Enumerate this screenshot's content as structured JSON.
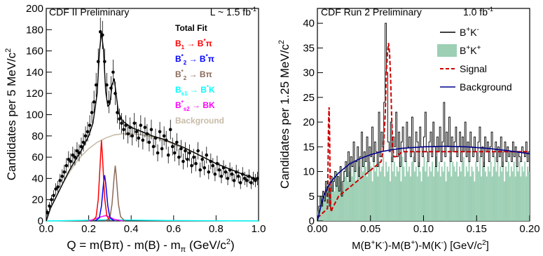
{
  "chart_data": [
    {
      "type": "line",
      "header_left": "CDF II Preliminary",
      "header_right_main": "L ~ 1.5 fb",
      "header_right_sup": "-1",
      "ylabel_main": "Candidates per 5 MeV/c",
      "ylabel_sup": "2",
      "xlabel_main": "Q = m(Bπ) - m(B) - m",
      "xlabel_sub": "π",
      "xlabel_tail": " (GeV/c",
      "xlabel_sup": "2",
      "xlabel_end": ")",
      "xlim": [
        0.0,
        1.0
      ],
      "ylim": [
        0,
        200
      ],
      "xticks": [
        0.0,
        0.2,
        0.4,
        0.6,
        0.8,
        1.0
      ],
      "xtick_labels": [
        "0.0",
        "0.2",
        "0.4",
        "0.6",
        "0.8",
        "1.0"
      ],
      "yticks": [
        0,
        20,
        40,
        60,
        80,
        100,
        120,
        140,
        160,
        180,
        200
      ],
      "ytick_labels": [
        "0",
        "20",
        "40",
        "60",
        "80",
        "100",
        "120",
        "140",
        "160",
        "180",
        "200"
      ],
      "legend_position": "top-right",
      "legend": [
        {
          "key": "total",
          "color": "#000000",
          "parts": [
            {
              "t": "Total Fit"
            }
          ]
        },
        {
          "key": "b1",
          "color": "#ff0000",
          "parts": [
            {
              "t": "B"
            },
            {
              "t": "1",
              "s": "sub"
            },
            {
              "t": " → B"
            },
            {
              "t": "*",
              "s": "sup"
            },
            {
              "t": "π"
            }
          ]
        },
        {
          "key": "b2star_bstarpi",
          "color": "#0000ff",
          "parts": [
            {
              "t": "B"
            },
            {
              "t": "*",
              "s": "sup"
            },
            {
              "t": "2",
              "s": "sub"
            },
            {
              "t": " → B"
            },
            {
              "t": "*",
              "s": "sup"
            },
            {
              "t": "π"
            }
          ]
        },
        {
          "key": "b2star_bpi",
          "color": "#8b6a5a",
          "parts": [
            {
              "t": "B"
            },
            {
              "t": "*",
              "s": "sup"
            },
            {
              "t": "2",
              "s": "sub"
            },
            {
              "t": " → Bπ"
            }
          ]
        },
        {
          "key": "bs1",
          "color": "#00ffff",
          "parts": [
            {
              "t": "B"
            },
            {
              "t": "s1",
              "s": "sub"
            },
            {
              "t": " → B"
            },
            {
              "t": "*",
              "s": "sup"
            },
            {
              "t": "K"
            }
          ]
        },
        {
          "key": "bs2",
          "color": "#ff00ff",
          "parts": [
            {
              "t": "B"
            },
            {
              "t": "*",
              "s": "sup"
            },
            {
              "t": "s2",
              "s": "sub"
            },
            {
              "t": " → BK"
            }
          ]
        },
        {
          "key": "background",
          "color": "#c8bba8",
          "parts": [
            {
              "t": "Background"
            }
          ]
        }
      ],
      "data_points": {
        "x": [
          0.005,
          0.015,
          0.025,
          0.035,
          0.045,
          0.055,
          0.065,
          0.075,
          0.085,
          0.095,
          0.105,
          0.115,
          0.125,
          0.135,
          0.145,
          0.155,
          0.165,
          0.175,
          0.185,
          0.195,
          0.205,
          0.215,
          0.225,
          0.235,
          0.245,
          0.255,
          0.265,
          0.275,
          0.285,
          0.295,
          0.305,
          0.315,
          0.325,
          0.335,
          0.345,
          0.355,
          0.365,
          0.375,
          0.385,
          0.395,
          0.405,
          0.415,
          0.425,
          0.435,
          0.445,
          0.455,
          0.465,
          0.475,
          0.485,
          0.495,
          0.505,
          0.515,
          0.525,
          0.535,
          0.545,
          0.555,
          0.565,
          0.575,
          0.585,
          0.595,
          0.605,
          0.615,
          0.625,
          0.635,
          0.645,
          0.655,
          0.665,
          0.675,
          0.685,
          0.695,
          0.705,
          0.715,
          0.725,
          0.735,
          0.745,
          0.755,
          0.765,
          0.775,
          0.785,
          0.795,
          0.805,
          0.815,
          0.825,
          0.835,
          0.845,
          0.855,
          0.865,
          0.875,
          0.885,
          0.895,
          0.905,
          0.915,
          0.925,
          0.935,
          0.945,
          0.955,
          0.965,
          0.975,
          0.985,
          0.995
        ],
        "y": [
          8,
          14,
          20,
          24,
          30,
          32,
          38,
          42,
          46,
          52,
          58,
          56,
          62,
          60,
          66,
          64,
          70,
          74,
          80,
          84,
          90,
          102,
          112,
          128,
          150,
          178,
          175,
          150,
          128,
          112,
          125,
          140,
          120,
          102,
          96,
          92,
          86,
          90,
          82,
          88,
          80,
          92,
          84,
          78,
          90,
          76,
          88,
          82,
          74,
          86,
          70,
          78,
          64,
          84,
          68,
          80,
          76,
          62,
          86,
          70,
          64,
          74,
          60,
          68,
          56,
          66,
          58,
          64,
          52,
          60,
          54,
          66,
          48,
          58,
          50,
          62,
          46,
          56,
          52,
          44,
          54,
          48,
          42,
          50,
          46,
          40,
          48,
          44,
          38,
          46,
          42,
          36,
          44,
          40,
          38,
          42,
          36,
          40,
          38,
          40
        ]
      },
      "curves": {
        "total": {
          "x": [
            0.0,
            0.02,
            0.05,
            0.08,
            0.11,
            0.14,
            0.17,
            0.2,
            0.22,
            0.24,
            0.25,
            0.26,
            0.27,
            0.28,
            0.29,
            0.3,
            0.31,
            0.32,
            0.33,
            0.34,
            0.36,
            0.4,
            0.45,
            0.5,
            0.55,
            0.6,
            0.65,
            0.7,
            0.75,
            0.8,
            0.85,
            0.9,
            0.95,
            1.0
          ],
          "y": [
            0,
            12,
            24,
            36,
            48,
            58,
            68,
            80,
            92,
            120,
            158,
            178,
            160,
            122,
            108,
            110,
            128,
            134,
            118,
            102,
            94,
            88,
            84,
            80,
            77,
            73,
            69,
            64,
            59,
            54,
            50,
            46,
            42,
            39
          ]
        },
        "background": {
          "x": [
            0.0,
            0.02,
            0.05,
            0.08,
            0.11,
            0.14,
            0.17,
            0.2,
            0.24,
            0.28,
            0.32,
            0.36,
            0.4,
            0.45,
            0.5,
            0.55,
            0.6,
            0.65,
            0.7,
            0.75,
            0.8,
            0.85,
            0.9,
            0.95,
            1.0
          ],
          "y": [
            0,
            12,
            24,
            36,
            46,
            55,
            62,
            68,
            74,
            78,
            81,
            82,
            82,
            81,
            79,
            76,
            72,
            68,
            64,
            59,
            54,
            50,
            46,
            42,
            39
          ]
        },
        "b1": {
          "x": [
            0.22,
            0.235,
            0.245,
            0.255,
            0.26,
            0.265,
            0.275,
            0.285,
            0.3
          ],
          "y": [
            0,
            4,
            20,
            58,
            76,
            60,
            22,
            5,
            0
          ]
        },
        "b2star_bstarpi": {
          "x": [
            0.23,
            0.25,
            0.26,
            0.27,
            0.275,
            0.28,
            0.29,
            0.3,
            0.32
          ],
          "y": [
            0,
            3,
            14,
            36,
            43,
            36,
            14,
            3,
            0
          ]
        },
        "b2star_bpi": {
          "x": [
            0.28,
            0.3,
            0.31,
            0.32,
            0.325,
            0.33,
            0.34,
            0.35,
            0.37
          ],
          "y": [
            0,
            3,
            16,
            42,
            52,
            42,
            16,
            4,
            0
          ]
        },
        "bs1": {
          "x": [
            0.0,
            0.2,
            0.3,
            0.4,
            0.6,
            0.8,
            1.0
          ],
          "y": [
            0,
            0.6,
            1.2,
            0.8,
            0.4,
            0.2,
            0
          ]
        },
        "bs2": {
          "x": [
            0.2,
            0.23,
            0.26,
            0.28,
            0.3,
            0.32,
            0.36
          ],
          "y": [
            0,
            2,
            4,
            5,
            3.5,
            1.5,
            0
          ]
        }
      }
    },
    {
      "type": "line",
      "header_left": "CDF Run 2 Preliminary",
      "header_right_main": "1.0 fb",
      "header_right_sup": "-1",
      "ylabel_main": "Candidates per 1.25 MeV/c",
      "ylabel_sup": "2",
      "xlabel_parts": [
        {
          "t": "M(B"
        },
        {
          "t": "+",
          "s": "sup"
        },
        {
          "t": "K"
        },
        {
          "t": "-",
          "s": "sup"
        },
        {
          "t": ")-M(B"
        },
        {
          "t": "+",
          "s": "sup"
        },
        {
          "t": ")-M(K"
        },
        {
          "t": "-",
          "s": "sup"
        },
        {
          "t": ") [GeV/c"
        },
        {
          "t": "2",
          "s": "sup"
        },
        {
          "t": "]"
        }
      ],
      "xlim": [
        0.0,
        0.2
      ],
      "ylim": [
        0,
        43
      ],
      "xticks": [
        0.0,
        0.05,
        0.1,
        0.15,
        0.2
      ],
      "xtick_labels": [
        "0.00",
        "0.05",
        "0.10",
        "0.15",
        "0.20"
      ],
      "yticks": [
        0,
        5,
        10,
        15,
        20,
        25,
        30,
        35,
        40
      ],
      "ytick_labels": [
        "0",
        "5",
        "10",
        "15",
        "20",
        "25",
        "30",
        "35",
        "40"
      ],
      "legend_position": "top-right",
      "legend": [
        {
          "key": "bk_opp",
          "color": "#000000",
          "style": "line",
          "parts": [
            {
              "t": "B"
            },
            {
              "t": "+",
              "s": "sup"
            },
            {
              "t": "K"
            },
            {
              "t": "-",
              "s": "sup"
            }
          ]
        },
        {
          "key": "bk_same",
          "color": "#9ccfb4",
          "style": "box",
          "parts": [
            {
              "t": "B"
            },
            {
              "t": "+",
              "s": "sup"
            },
            {
              "t": "K"
            },
            {
              "t": "+",
              "s": "sup"
            }
          ]
        },
        {
          "key": "signal",
          "color": "#cc0000",
          "style": "dash",
          "parts": [
            {
              "t": "Signal"
            }
          ]
        },
        {
          "key": "background",
          "color": "#00008b",
          "style": "line",
          "parts": [
            {
              "t": "Background"
            }
          ]
        }
      ],
      "histogram_opp_sign": [
        1,
        3,
        5,
        3,
        6,
        4,
        8,
        5,
        7,
        3,
        9,
        6,
        8,
        10,
        7,
        9,
        6,
        11,
        5,
        8,
        10,
        12,
        9,
        14,
        8,
        13,
        11,
        16,
        10,
        12,
        15,
        9,
        13,
        18,
        11,
        14,
        12,
        17,
        10,
        15,
        13,
        19,
        12,
        16,
        14,
        11,
        22,
        13,
        18,
        15,
        24,
        40,
        30,
        16,
        14,
        20,
        12,
        17,
        15,
        22,
        13,
        18,
        11,
        16,
        19,
        14,
        12,
        20,
        15,
        17,
        13,
        21,
        14,
        12,
        18,
        16,
        11,
        19,
        15,
        13,
        17,
        22,
        14,
        12,
        16,
        18,
        13,
        20,
        15,
        11,
        17,
        14,
        19,
        12,
        16,
        24,
        13,
        18,
        15,
        21,
        12,
        17,
        14,
        16,
        19,
        13,
        15,
        18,
        12,
        17,
        14,
        20,
        13,
        16,
        12,
        18,
        15,
        13,
        17,
        14,
        12,
        16,
        19,
        13,
        15,
        11,
        17,
        14,
        16,
        12,
        15,
        18,
        13,
        14,
        16,
        12,
        15,
        13,
        17,
        11,
        14,
        16,
        12,
        15,
        13,
        14,
        12,
        16,
        13,
        15,
        11,
        14,
        13,
        12,
        15,
        14,
        13,
        16,
        12,
        14
      ],
      "histogram_same_sign": [
        2,
        3,
        5,
        4,
        6,
        5,
        7,
        5,
        8,
        6,
        7,
        9,
        6,
        8,
        10,
        7,
        9,
        8,
        6,
        10,
        9,
        11,
        8,
        10,
        12,
        9,
        11,
        10,
        8,
        12,
        11,
        9,
        13,
        10,
        12,
        11,
        9,
        10,
        12,
        11,
        8,
        13,
        10,
        11,
        9,
        12,
        10,
        11,
        13,
        9,
        12,
        10,
        11,
        8,
        13,
        10,
        12,
        9,
        11,
        10,
        12,
        8,
        13,
        11,
        9,
        12,
        10,
        11,
        9,
        12,
        13,
        10,
        11,
        9,
        12,
        10,
        8,
        11,
        13,
        10,
        12,
        9,
        11,
        10,
        12,
        9,
        11,
        13,
        10,
        12,
        9,
        11,
        10,
        12,
        8,
        11,
        10,
        13,
        9,
        12,
        11,
        10,
        12,
        9,
        11,
        10,
        12,
        13,
        9,
        11,
        10,
        12,
        9,
        11,
        10,
        8,
        12,
        11,
        10,
        13,
        9,
        11,
        12,
        10,
        9,
        11,
        10,
        12,
        9,
        11,
        13,
        10,
        12,
        9,
        11,
        10,
        12,
        8,
        11,
        10,
        12,
        9,
        11,
        10,
        12,
        9,
        11,
        10,
        12,
        9,
        11,
        10,
        12,
        9,
        11,
        10
      ],
      "signal_curve": {
        "x": [
          0.0,
          0.0095,
          0.01,
          0.0105,
          0.011,
          0.0115,
          0.012,
          0.0125,
          0.013,
          0.014,
          0.02,
          0.06,
          0.062,
          0.064,
          0.065,
          0.066,
          0.067,
          0.068,
          0.069,
          0.07,
          0.071,
          0.072,
          0.074,
          0.08,
          0.2
        ],
        "y": [
          0.6,
          2.5,
          10,
          20,
          23,
          18,
          8,
          3,
          1.8,
          2.5,
          5,
          12,
          14,
          22,
          30,
          34,
          36,
          34,
          29,
          21,
          15,
          13,
          13,
          14,
          14
        ]
      },
      "background_curve": {
        "x": [
          0.0,
          0.005,
          0.01,
          0.015,
          0.02,
          0.03,
          0.04,
          0.05,
          0.06,
          0.07,
          0.08,
          0.1,
          0.12,
          0.14,
          0.16,
          0.18,
          0.2
        ],
        "y": [
          0,
          4.5,
          7,
          8.5,
          9.7,
          11.5,
          12.6,
          13.4,
          14,
          14.4,
          14.7,
          15,
          15.1,
          15,
          14.7,
          14.2,
          13.6
        ]
      }
    }
  ]
}
